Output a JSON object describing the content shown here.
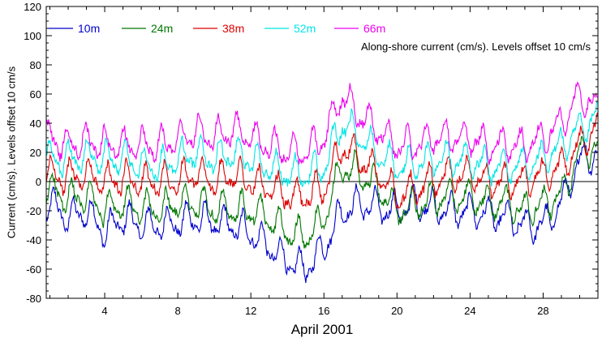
{
  "chart_data": {
    "type": "line",
    "xlabel": "April 2001",
    "ylabel": "Current (cm/s). Levels offset 10 cm/s",
    "annotation": "Along-shore current (cm/s). Levels offset 10 cm/s",
    "xlim": [
      0.8,
      31.0
    ],
    "ylim": [
      -80,
      120
    ],
    "x_ticks": [
      4,
      8,
      12,
      16,
      20,
      24,
      28
    ],
    "y_ticks": [
      -80,
      -60,
      -40,
      -20,
      0,
      20,
      40,
      60,
      80,
      100,
      120
    ],
    "zero_line": true,
    "legend_position": "top-left",
    "x": [
      1,
      2,
      3,
      4,
      5,
      6,
      7,
      8,
      9,
      10,
      11,
      12,
      13,
      14,
      15,
      16,
      17,
      18,
      19,
      20,
      21,
      22,
      23,
      24,
      25,
      26,
      27,
      28,
      29,
      30,
      31
    ],
    "series": [
      {
        "name": "10m",
        "color": "#0000cc",
        "values": [
          -15,
          -25,
          -20,
          -35,
          -25,
          -30,
          -30,
          -28,
          -25,
          -28,
          -30,
          -35,
          -45,
          -55,
          -60,
          -45,
          -20,
          -15,
          -18,
          -20,
          -15,
          -18,
          -20,
          -20,
          -22,
          -25,
          -30,
          -30,
          -15,
          15,
          20
        ]
      },
      {
        "name": "24m",
        "color": "#007700",
        "values": [
          -5,
          -12,
          -10,
          -20,
          -15,
          -18,
          -20,
          -15,
          -15,
          -18,
          -20,
          -20,
          -25,
          -35,
          -38,
          -25,
          10,
          5,
          -5,
          -20,
          -15,
          -12,
          -10,
          -10,
          -15,
          -15,
          -20,
          -15,
          -10,
          20,
          25
        ]
      },
      {
        "name": "38m",
        "color": "#dd0000",
        "values": [
          5,
          3,
          5,
          0,
          2,
          0,
          0,
          2,
          5,
          0,
          5,
          0,
          -5,
          -10,
          -10,
          -5,
          25,
          15,
          5,
          -10,
          -5,
          0,
          5,
          5,
          0,
          0,
          0,
          5,
          10,
          25,
          40
        ]
      },
      {
        "name": "52m",
        "color": "#00e5e5",
        "values": [
          15,
          15,
          18,
          15,
          15,
          12,
          10,
          15,
          20,
          15,
          20,
          15,
          10,
          5,
          5,
          10,
          40,
          30,
          20,
          10,
          12,
          15,
          15,
          15,
          10,
          10,
          12,
          15,
          25,
          35,
          45
        ]
      },
      {
        "name": "66m",
        "color": "#ee00ee",
        "values": [
          30,
          25,
          28,
          25,
          25,
          25,
          25,
          30,
          35,
          30,
          35,
          30,
          25,
          20,
          20,
          30,
          60,
          45,
          35,
          25,
          25,
          30,
          30,
          30,
          25,
          25,
          25,
          30,
          40,
          60,
          50
        ]
      }
    ]
  }
}
